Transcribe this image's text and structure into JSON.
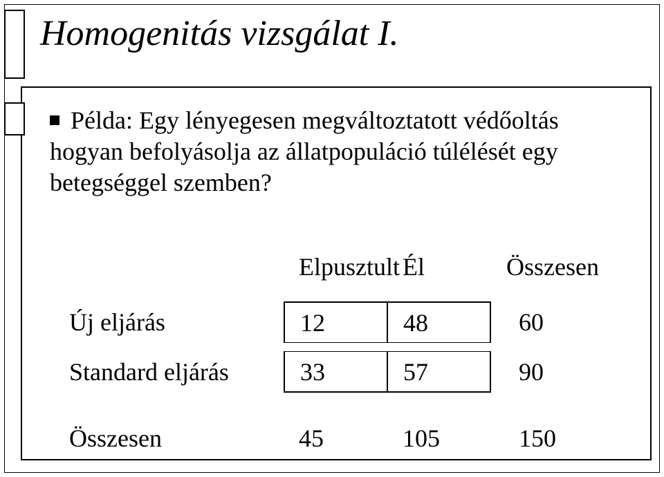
{
  "title": "Homogenitás vizsgálat I.",
  "bullet": "Példa: Egy lényegesen megváltoztatott védőoltás hogyan befolyásolja az állatpopuláció túlélését egy betegséggel szemben?",
  "table": {
    "headers": {
      "col1": "Elpusztult",
      "col2": "Él",
      "col3": "Összesen"
    },
    "rows": [
      {
        "label": "Új eljárás",
        "c1": "12",
        "c2": "48",
        "c3": "60"
      },
      {
        "label": "Standard eljárás",
        "c1": "33",
        "c2": "57",
        "c3": "90"
      },
      {
        "label": "Összesen",
        "c1": "45",
        "c2": "105",
        "c3": "150"
      }
    ]
  },
  "style": {
    "background_color": "#ffffff",
    "text_color": "#000000",
    "border_color": "#000000",
    "title_fontsize_pt": 39,
    "body_fontsize_pt": 27,
    "font_family": "Times New Roman",
    "title_italic": true,
    "bullet_marker": "filled-square"
  }
}
